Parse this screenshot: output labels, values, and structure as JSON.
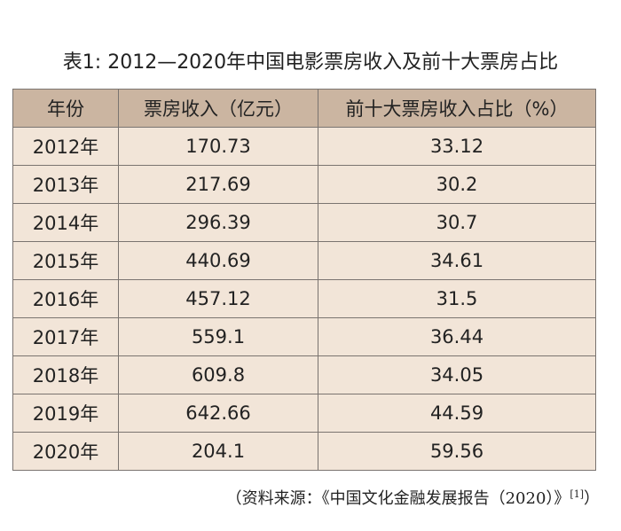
{
  "title": "表1: 2012—2020年中国电影票房收入及前十大票房占比",
  "table": {
    "header": [
      "年份",
      "票房收入（亿元）",
      "前十大票房收入占比（%）"
    ],
    "rows": [
      [
        "2012年",
        "170.73",
        "33.12"
      ],
      [
        "2013年",
        "217.69",
        "30.2"
      ],
      [
        "2014年",
        "296.39",
        "30.7"
      ],
      [
        "2015年",
        "440.69",
        "34.61"
      ],
      [
        "2016年",
        "457.12",
        "31.5"
      ],
      [
        "2017年",
        "559.1",
        "36.44"
      ],
      [
        "2018年",
        "609.8",
        "34.05"
      ],
      [
        "2019年",
        "642.66",
        "44.59"
      ],
      [
        "2020年",
        "204.1",
        "59.56"
      ]
    ]
  },
  "source": {
    "text": "（资料来源：《中国文化金融发展报告（2020）》",
    "ref": "[1]",
    "close": "）"
  }
}
